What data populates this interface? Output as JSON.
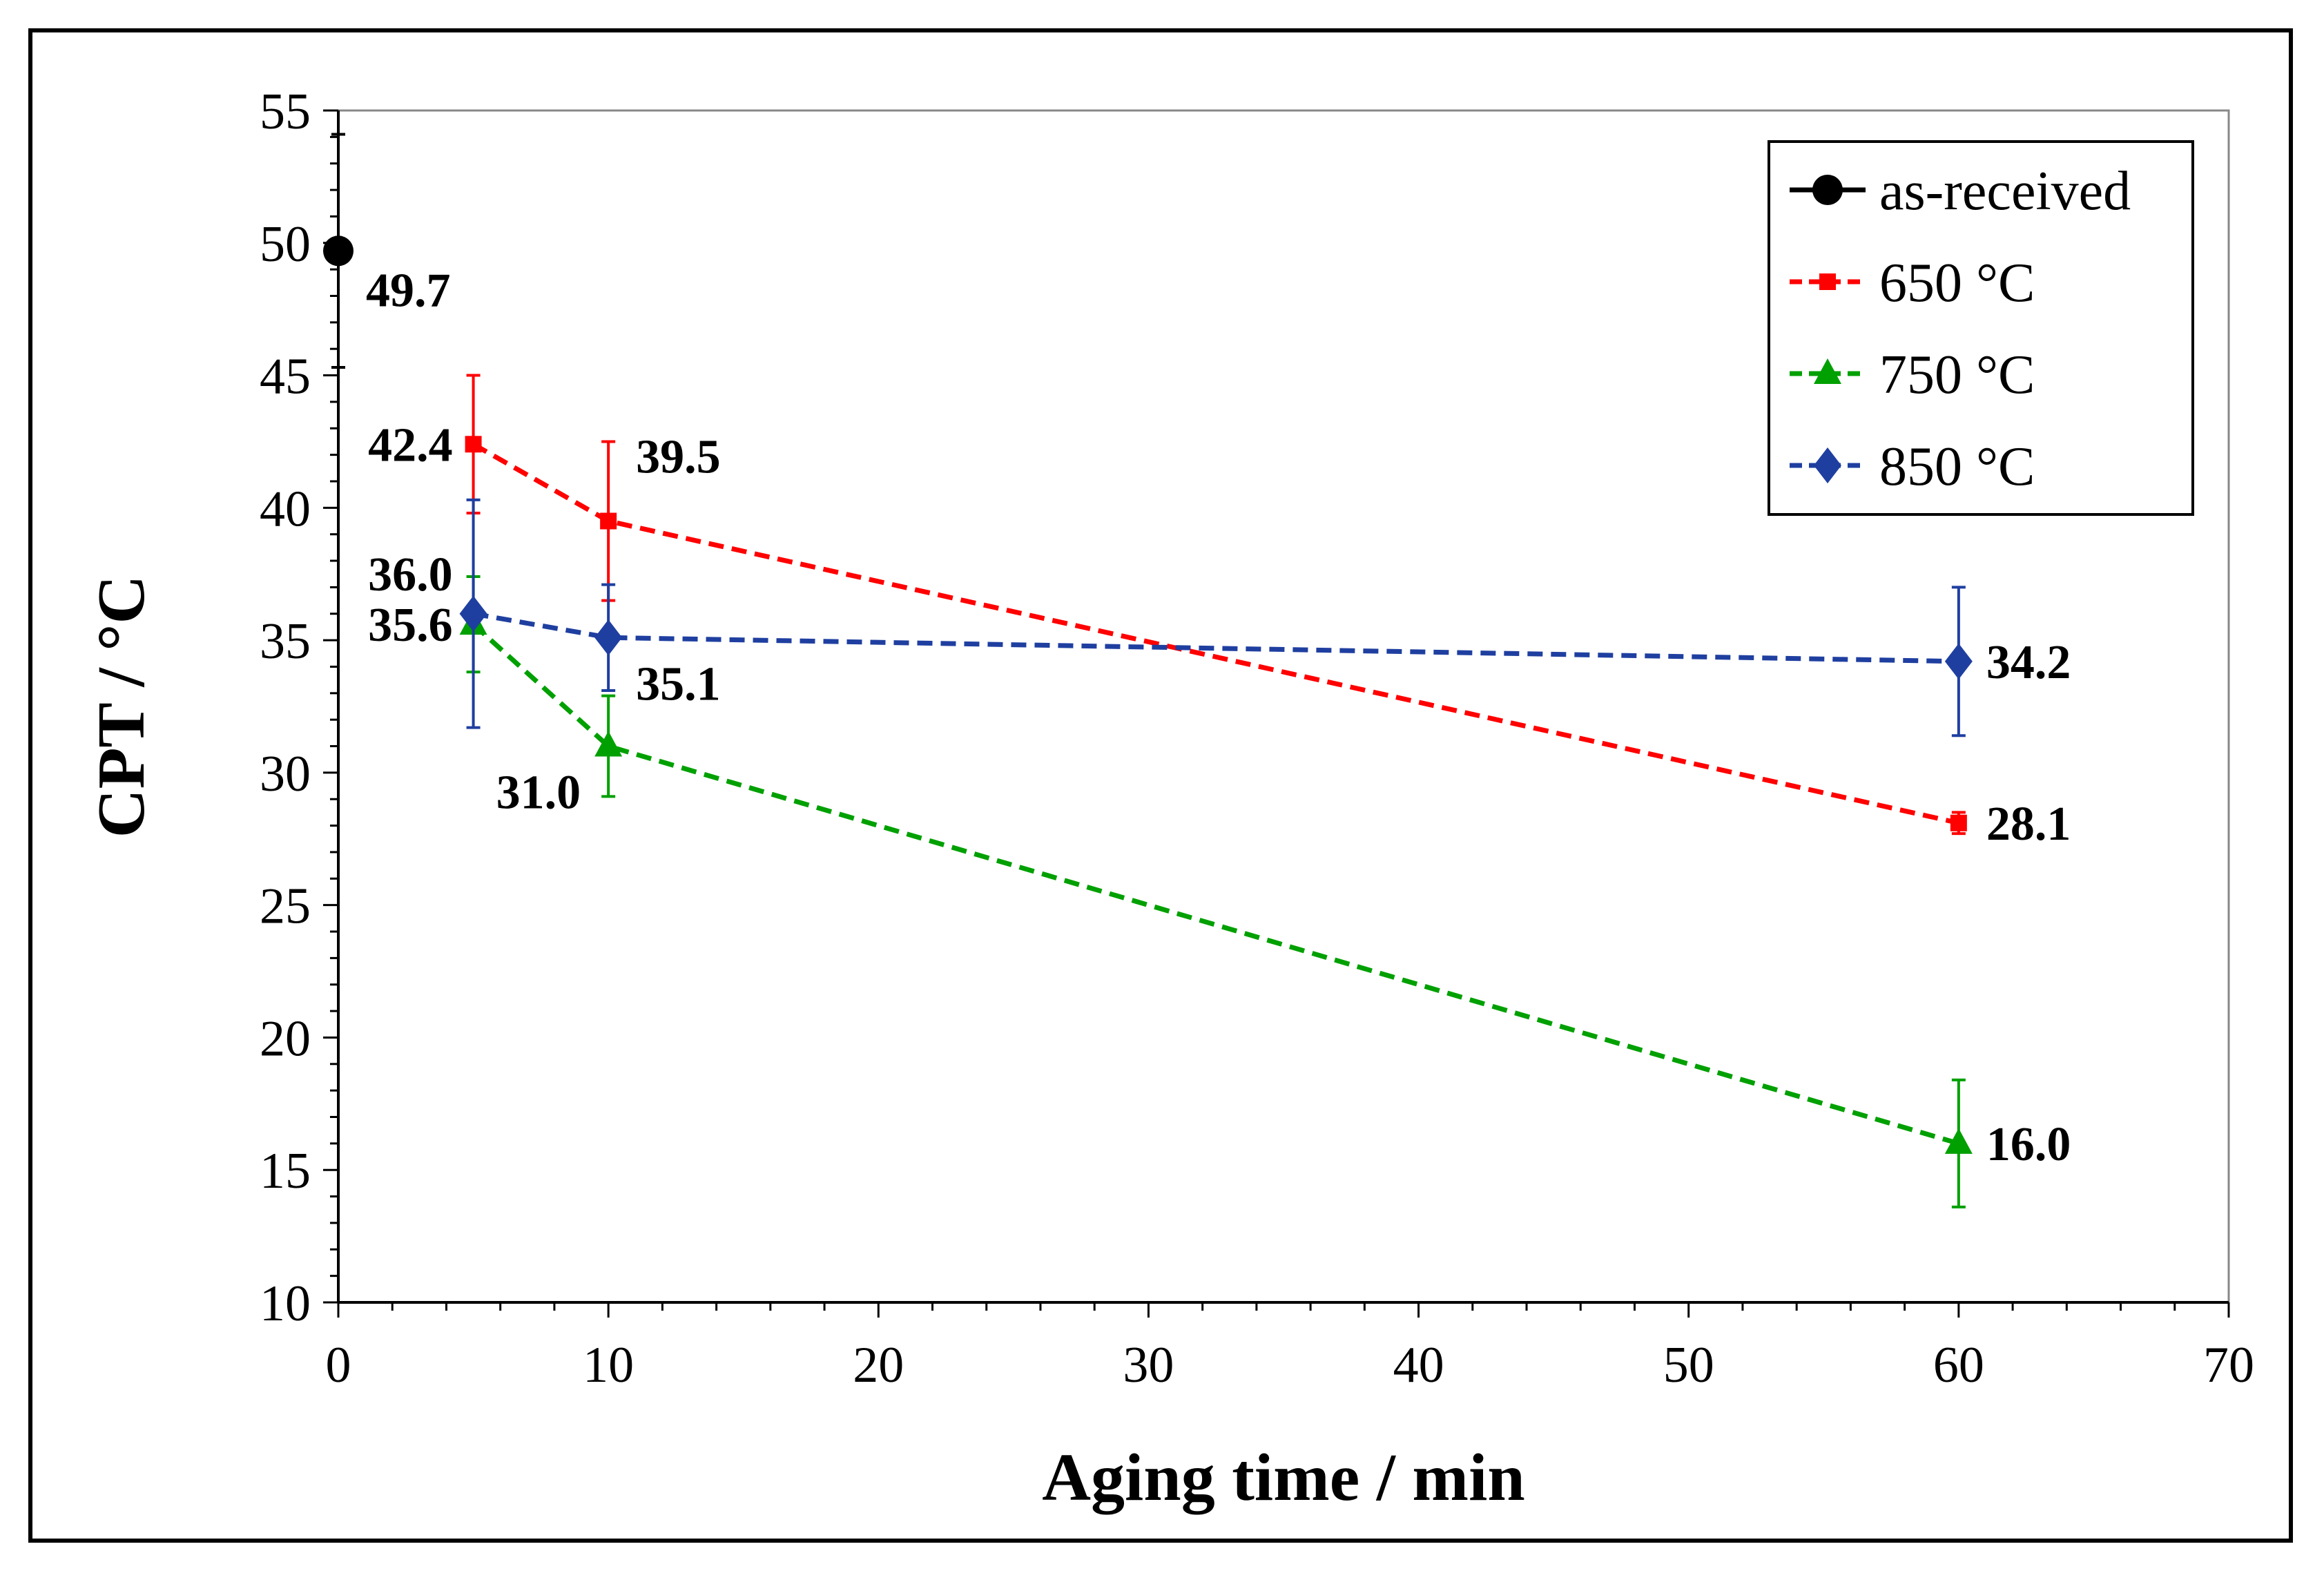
{
  "chart_data": {
    "type": "line",
    "xlabel": "Aging time / min",
    "ylabel": "CPT / °C",
    "xlim": [
      0,
      70
    ],
    "ylim": [
      10,
      55
    ],
    "xticks": [
      0,
      10,
      20,
      30,
      40,
      50,
      60,
      70
    ],
    "yticks": [
      10,
      15,
      20,
      25,
      30,
      35,
      40,
      45,
      50,
      55
    ],
    "grid": false,
    "legend_position": "top-right",
    "series": [
      {
        "name": "as-received",
        "color": "#000000",
        "marker": "circle",
        "dashed": false,
        "points": [
          {
            "x": 0,
            "y": 49.7,
            "err": 4.4,
            "label": "49.7",
            "label_pos": "right-below"
          }
        ]
      },
      {
        "name": "650 °C",
        "color": "#ff0000",
        "marker": "square",
        "dashed": true,
        "points": [
          {
            "x": 5,
            "y": 42.4,
            "err": 2.6,
            "label": "42.4",
            "label_pos": "left"
          },
          {
            "x": 10,
            "y": 39.5,
            "err": 3.0,
            "label": "39.5",
            "label_pos": "upper-right"
          },
          {
            "x": 60,
            "y": 28.1,
            "err": 0.4,
            "label": "28.1",
            "label_pos": "right"
          }
        ]
      },
      {
        "name": "750 °C",
        "color": "#00a000",
        "marker": "triangle",
        "dashed": true,
        "points": [
          {
            "x": 5,
            "y": 35.6,
            "err": 1.8,
            "label": "35.6",
            "label_pos": "left"
          },
          {
            "x": 10,
            "y": 31.0,
            "err": 1.9,
            "label": "31.0",
            "label_pos": "lower-left"
          },
          {
            "x": 60,
            "y": 16.0,
            "err": 2.4,
            "label": "16.0",
            "label_pos": "right"
          }
        ]
      },
      {
        "name": "850 °C",
        "color": "#1f3fa0",
        "marker": "diamond",
        "dashed": true,
        "points": [
          {
            "x": 5,
            "y": 36.0,
            "err": 4.3,
            "label": "36.0",
            "label_pos": "upper-left"
          },
          {
            "x": 10,
            "y": 35.1,
            "err": 2.0,
            "label": "35.1",
            "label_pos": "lower-right"
          },
          {
            "x": 60,
            "y": 34.2,
            "err": 2.8,
            "label": "34.2",
            "label_pos": "right"
          }
        ]
      }
    ]
  }
}
